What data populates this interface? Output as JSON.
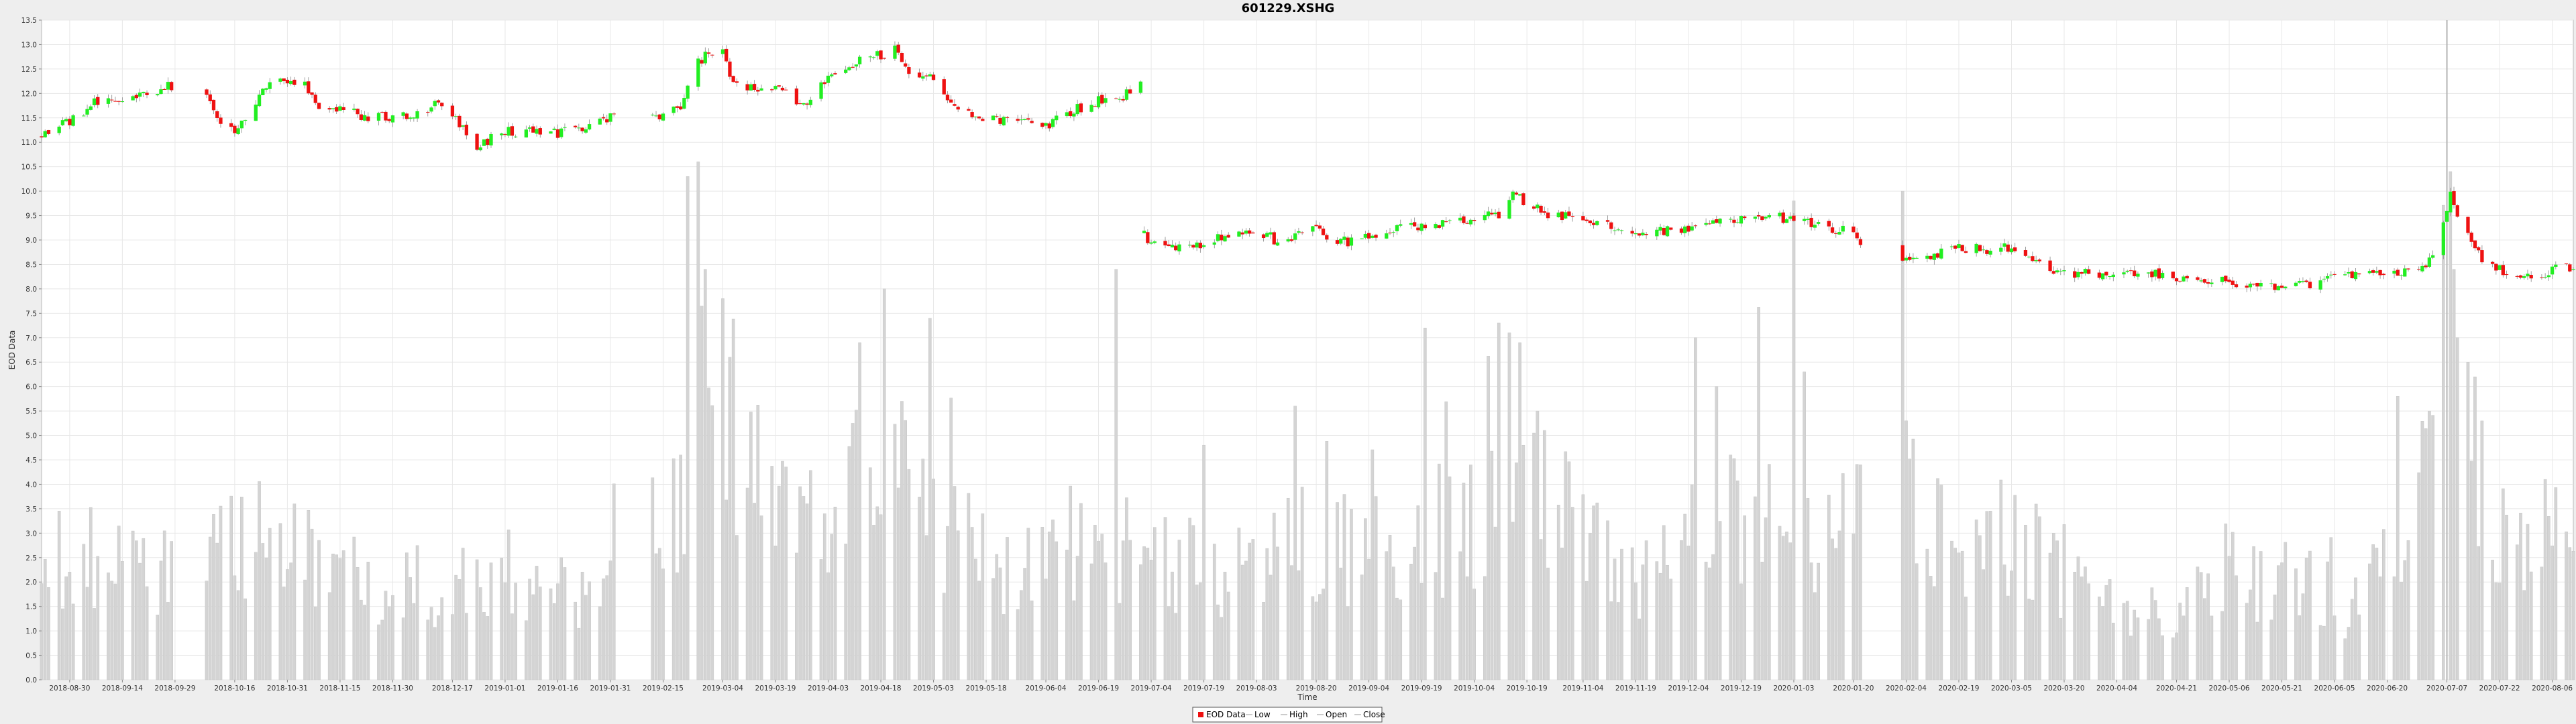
{
  "chart_data": {
    "type": "candlestick",
    "title": "601229.XSHG",
    "xlabel": "Time",
    "ylabel": "EOD Data",
    "ylim": [
      0.0,
      13.5
    ],
    "y_ticks": [
      0.0,
      0.5,
      1.0,
      1.5,
      2.0,
      2.5,
      3.0,
      3.5,
      4.0,
      4.5,
      5.0,
      5.5,
      6.0,
      6.5,
      7.0,
      7.5,
      8.0,
      8.5,
      9.0,
      9.5,
      10.0,
      10.5,
      11.0,
      11.5,
      12.0,
      12.5,
      13.0,
      13.5
    ],
    "x_range": [
      "2018-08-22",
      "2020-08-12"
    ],
    "x_ticks": [
      "2018-08-30",
      "2018-09-14",
      "2018-09-29",
      "2018-10-16",
      "2018-10-31",
      "2018-11-15",
      "2018-11-30",
      "2018-12-17",
      "2019-01-01",
      "2019-01-16",
      "2019-01-31",
      "2019-02-15",
      "2019-03-04",
      "2019-03-19",
      "2019-04-03",
      "2019-04-18",
      "2019-05-03",
      "2019-05-18",
      "2019-06-04",
      "2019-06-19",
      "2019-07-04",
      "2019-07-19",
      "2019-08-03",
      "2019-08-20",
      "2019-09-04",
      "2019-09-19",
      "2019-10-04",
      "2019-10-19",
      "2019-11-04",
      "2019-11-19",
      "2019-12-04",
      "2019-12-19",
      "2020-01-03",
      "2020-01-20",
      "2020-02-04",
      "2020-02-19",
      "2020-03-05",
      "2020-03-20",
      "2020-04-04",
      "2020-04-21",
      "2020-05-06",
      "2020-05-21",
      "2020-06-05",
      "2020-06-20",
      "2020-07-07",
      "2020-07-22",
      "2020-08-06"
    ],
    "price_path": [
      [
        "2018-08-22",
        11.15
      ],
      [
        "2018-08-30",
        11.45
      ],
      [
        "2018-09-07",
        11.85
      ],
      [
        "2018-09-14",
        11.75
      ],
      [
        "2018-09-20",
        11.95
      ],
      [
        "2018-09-26",
        12.15
      ],
      [
        "2018-09-30",
        12.15
      ],
      [
        "2018-10-08",
        11.95
      ],
      [
        "2018-10-12",
        11.3
      ],
      [
        "2018-10-16",
        11.2
      ],
      [
        "2018-10-22",
        11.8
      ],
      [
        "2018-10-26",
        12.2
      ],
      [
        "2018-10-31",
        12.3
      ],
      [
        "2018-11-05",
        12.2
      ],
      [
        "2018-11-09",
        11.75
      ],
      [
        "2018-11-15",
        11.7
      ],
      [
        "2018-11-22",
        11.5
      ],
      [
        "2018-11-30",
        11.55
      ],
      [
        "2018-12-06",
        11.55
      ],
      [
        "2018-12-12",
        11.75
      ],
      [
        "2018-12-17",
        11.55
      ],
      [
        "2018-12-24",
        10.95
      ],
      [
        "2019-01-01",
        11.2
      ],
      [
        "2019-01-08",
        11.25
      ],
      [
        "2019-01-16",
        11.2
      ],
      [
        "2019-01-24",
        11.25
      ],
      [
        "2019-01-31",
        11.55
      ],
      [
        "2019-02-13",
        11.5
      ],
      [
        "2019-02-20",
        11.75
      ],
      [
        "2019-02-25",
        12.7
      ],
      [
        "2019-03-04",
        12.85
      ],
      [
        "2019-03-07",
        12.2
      ],
      [
        "2019-03-13",
        12.1
      ],
      [
        "2019-03-19",
        12.15
      ],
      [
        "2019-03-25",
        11.8
      ],
      [
        "2019-03-29",
        11.85
      ],
      [
        "2019-04-03",
        12.3
      ],
      [
        "2019-04-08",
        12.5
      ],
      [
        "2019-04-12",
        12.65
      ],
      [
        "2019-04-18",
        12.8
      ],
      [
        "2019-04-23",
        12.9
      ],
      [
        "2019-04-26",
        12.35
      ],
      [
        "2019-04-30",
        12.45
      ],
      [
        "2019-05-06",
        12.0
      ],
      [
        "2019-05-10",
        11.6
      ],
      [
        "2019-05-18",
        11.45
      ],
      [
        "2019-05-24",
        11.45
      ],
      [
        "2019-06-04",
        11.35
      ],
      [
        "2019-06-10",
        11.6
      ],
      [
        "2019-06-19",
        11.85
      ],
      [
        "2019-06-26",
        11.95
      ],
      [
        "2019-07-01",
        12.2
      ],
      [
        "2019-07-02",
        9.1
      ],
      [
        "2019-07-04",
        8.9
      ],
      [
        "2019-07-10",
        8.85
      ],
      [
        "2019-07-19",
        8.9
      ],
      [
        "2019-07-28",
        9.15
      ],
      [
        "2019-08-03",
        9.25
      ],
      [
        "2019-08-09",
        8.95
      ],
      [
        "2019-08-20",
        9.2
      ],
      [
        "2019-08-27",
        8.95
      ],
      [
        "2019-09-04",
        9.05
      ],
      [
        "2019-09-11",
        9.25
      ],
      [
        "2019-09-19",
        9.25
      ],
      [
        "2019-09-27",
        9.35
      ],
      [
        "2019-10-04",
        9.4
      ],
      [
        "2019-10-11",
        9.55
      ],
      [
        "2019-10-15",
        9.95
      ],
      [
        "2019-10-19",
        9.75
      ],
      [
        "2019-10-25",
        9.55
      ],
      [
        "2019-11-04",
        9.45
      ],
      [
        "2019-11-10",
        9.3
      ],
      [
        "2019-11-19",
        9.15
      ],
      [
        "2019-11-27",
        9.2
      ],
      [
        "2019-12-04",
        9.25
      ],
      [
        "2019-12-12",
        9.3
      ],
      [
        "2019-12-19",
        9.5
      ],
      [
        "2019-12-27",
        9.5
      ],
      [
        "2020-01-03",
        9.4
      ],
      [
        "2020-01-10",
        9.3
      ],
      [
        "2020-01-17",
        9.2
      ],
      [
        "2020-01-20",
        9.05
      ],
      [
        "2020-02-03",
        8.6
      ],
      [
        "2020-02-07",
        8.6
      ],
      [
        "2020-02-14",
        8.75
      ],
      [
        "2020-02-19",
        8.85
      ],
      [
        "2020-02-26",
        8.8
      ],
      [
        "2020-03-05",
        8.85
      ],
      [
        "2020-03-12",
        8.6
      ],
      [
        "2020-03-20",
        8.3
      ],
      [
        "2020-03-27",
        8.35
      ],
      [
        "2020-04-04",
        8.3
      ],
      [
        "2020-04-14",
        8.3
      ],
      [
        "2020-04-21",
        8.2
      ],
      [
        "2020-04-28",
        8.15
      ],
      [
        "2020-05-06",
        8.15
      ],
      [
        "2020-05-14",
        8.1
      ],
      [
        "2020-05-21",
        8.05
      ],
      [
        "2020-05-28",
        8.1
      ],
      [
        "2020-06-05",
        8.2
      ],
      [
        "2020-06-12",
        8.3
      ],
      [
        "2020-06-20",
        8.4
      ],
      [
        "2020-06-27",
        8.35
      ],
      [
        "2020-07-02",
        8.6
      ],
      [
        "2020-07-06",
        9.3
      ],
      [
        "2020-07-08",
        9.9
      ],
      [
        "2020-07-13",
        9.05
      ],
      [
        "2020-07-17",
        8.6
      ],
      [
        "2020-07-22",
        8.4
      ],
      [
        "2020-07-29",
        8.2
      ],
      [
        "2020-08-06",
        8.4
      ],
      [
        "2020-08-12",
        8.45
      ]
    ],
    "gaps": [
      [
        "2018-10-01",
        "2018-10-07"
      ],
      [
        "2019-02-02",
        "2019-02-11"
      ],
      [
        "2020-01-23",
        "2020-02-02"
      ]
    ],
    "volume_anchors": [
      [
        "2018-08-22",
        2.2
      ],
      [
        "2018-09-01",
        2.5
      ],
      [
        "2018-09-20",
        2.2
      ],
      [
        "2018-10-15",
        2.6
      ],
      [
        "2018-10-30",
        3.0
      ],
      [
        "2018-11-20",
        1.6
      ],
      [
        "2018-12-10",
        1.9
      ],
      [
        "2019-01-10",
        1.6
      ],
      [
        "2019-01-31",
        1.8
      ],
      [
        "2019-02-18",
        3.3
      ],
      [
        "2019-02-27",
        7.2
      ],
      [
        "2019-03-10",
        4.3
      ],
      [
        "2019-03-25",
        2.8
      ],
      [
        "2019-04-10",
        3.9
      ],
      [
        "2019-04-25",
        4.2
      ],
      [
        "2019-05-08",
        2.8
      ],
      [
        "2019-05-25",
        2.2
      ],
      [
        "2019-06-15",
        2.8
      ],
      [
        "2019-07-05",
        2.4
      ],
      [
        "2019-07-20",
        2.2
      ],
      [
        "2019-08-10",
        2.7
      ],
      [
        "2019-09-01",
        2.5
      ],
      [
        "2019-09-20",
        2.6
      ],
      [
        "2019-10-10",
        3.3
      ],
      [
        "2019-10-25",
        4.0
      ],
      [
        "2019-11-10",
        2.6
      ],
      [
        "2019-11-25",
        2.0
      ],
      [
        "2019-12-10",
        3.0
      ],
      [
        "2019-12-25",
        3.7
      ],
      [
        "2020-01-10",
        2.8
      ],
      [
        "2020-02-05",
        3.4
      ],
      [
        "2020-02-20",
        2.5
      ],
      [
        "2020-03-10",
        2.5
      ],
      [
        "2020-03-25",
        2.0
      ],
      [
        "2020-04-10",
        1.1
      ],
      [
        "2020-04-25",
        1.7
      ],
      [
        "2020-05-10",
        2.1
      ],
      [
        "2020-05-25",
        1.9
      ],
      [
        "2020-06-10",
        1.4
      ],
      [
        "2020-06-25",
        2.7
      ],
      [
        "2020-07-06",
        5.5
      ],
      [
        "2020-07-15",
        4.0
      ],
      [
        "2020-07-25",
        2.4
      ],
      [
        "2020-08-12",
        2.6
      ]
    ],
    "volume_spikes": [
      [
        "2018-10-29",
        3.2
      ],
      [
        "2018-11-02",
        3.6
      ],
      [
        "2018-11-10",
        5.5
      ],
      [
        "2019-02-22",
        10.3
      ],
      [
        "2019-02-25",
        10.6
      ],
      [
        "2019-02-27",
        8.4
      ],
      [
        "2019-03-04",
        7.8
      ],
      [
        "2019-03-06",
        6.6
      ],
      [
        "2019-04-12",
        6.9
      ],
      [
        "2019-04-19",
        8.0
      ],
      [
        "2019-04-24",
        5.7
      ],
      [
        "2019-05-02",
        7.4
      ],
      [
        "2019-06-24",
        8.4
      ],
      [
        "2019-08-14",
        5.6
      ],
      [
        "2019-09-20",
        7.2
      ],
      [
        "2019-10-11",
        7.3
      ],
      [
        "2019-10-14",
        7.1
      ],
      [
        "2019-10-17",
        6.9
      ],
      [
        "2019-10-22",
        5.5
      ],
      [
        "2019-12-06",
        7.0
      ],
      [
        "2019-12-12",
        6.0
      ],
      [
        "2020-01-03",
        9.8
      ],
      [
        "2020-01-06",
        6.3
      ],
      [
        "2020-01-23",
        4.5
      ],
      [
        "2020-02-03",
        10.0
      ],
      [
        "2020-02-04",
        5.3
      ],
      [
        "2020-06-23",
        5.8
      ],
      [
        "2020-07-02",
        5.5
      ],
      [
        "2020-07-07",
        13.5
      ],
      [
        "2020-07-08",
        10.4
      ],
      [
        "2020-07-09",
        8.4
      ],
      [
        "2020-07-10",
        7.0
      ],
      [
        "2020-07-13",
        6.5
      ],
      [
        "2020-07-15",
        6.2
      ],
      [
        "2020-08-04",
        4.1
      ]
    ],
    "colors": {
      "up": "#22ee22",
      "down": "#ee1111",
      "wick": "#888888",
      "volume": "#d4d4d4",
      "volume_stroke": "#c6c6c6",
      "grid": "#e8e8e8",
      "plot_bg": "#ffffff",
      "page_bg": "#eeeeee",
      "spike_line": "#b4b4b4"
    },
    "grid": true,
    "legend_position": "bottom-center",
    "legend": [
      {
        "label": "EOD Data",
        "marker": "red-square"
      },
      {
        "label": "Low",
        "marker": "line"
      },
      {
        "label": "High",
        "marker": "line"
      },
      {
        "label": "Open",
        "marker": "line"
      },
      {
        "label": "Close",
        "marker": "line"
      }
    ]
  }
}
